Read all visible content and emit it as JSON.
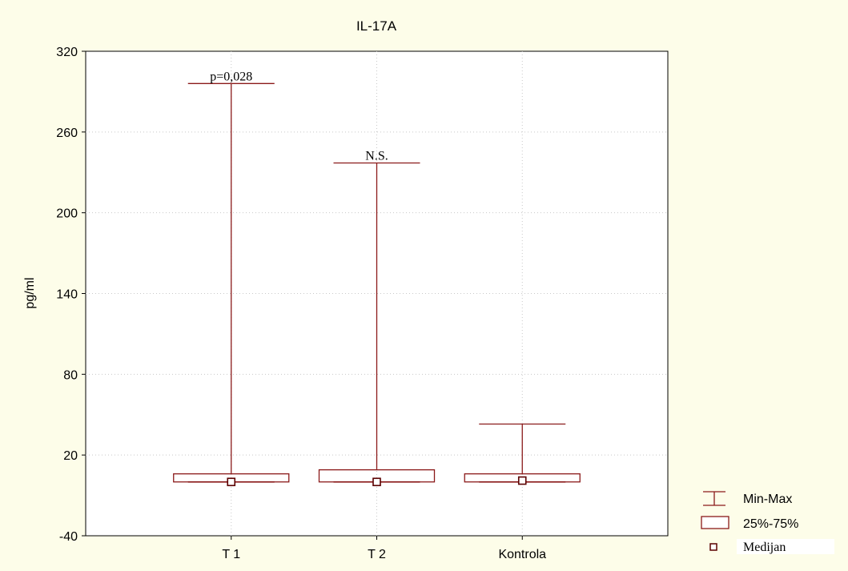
{
  "chart_data": {
    "type": "box",
    "title": "IL-17A",
    "ylabel": "pg/ml",
    "xlabel": "",
    "ylim": [
      -40,
      320
    ],
    "yticks": [
      -40,
      20,
      80,
      140,
      200,
      260,
      320
    ],
    "categories": [
      "T 1",
      "T 2",
      "Kontrola"
    ],
    "boxes": [
      {
        "category": "T 1",
        "min": 0,
        "q1": 0,
        "median": 0,
        "q3": 6,
        "max": 296,
        "annotation": "p=0,028"
      },
      {
        "category": "T 2",
        "min": 0,
        "q1": 0,
        "median": 0,
        "q3": 9,
        "max": 237,
        "annotation": "N.S."
      },
      {
        "category": "Kontrola",
        "min": 0,
        "q1": 0,
        "median": 1,
        "q3": 6,
        "max": 43,
        "annotation": ""
      }
    ],
    "grid": true,
    "legend_position": "bottom-right",
    "legend": {
      "minmax": "Min-Max",
      "box": "25%-75%",
      "median": "Medijan"
    },
    "colors": {
      "series": "#8b1a1a",
      "median_marker": "#5a0000",
      "background": "#fdfde9",
      "plot_area": "#ffffff"
    }
  }
}
